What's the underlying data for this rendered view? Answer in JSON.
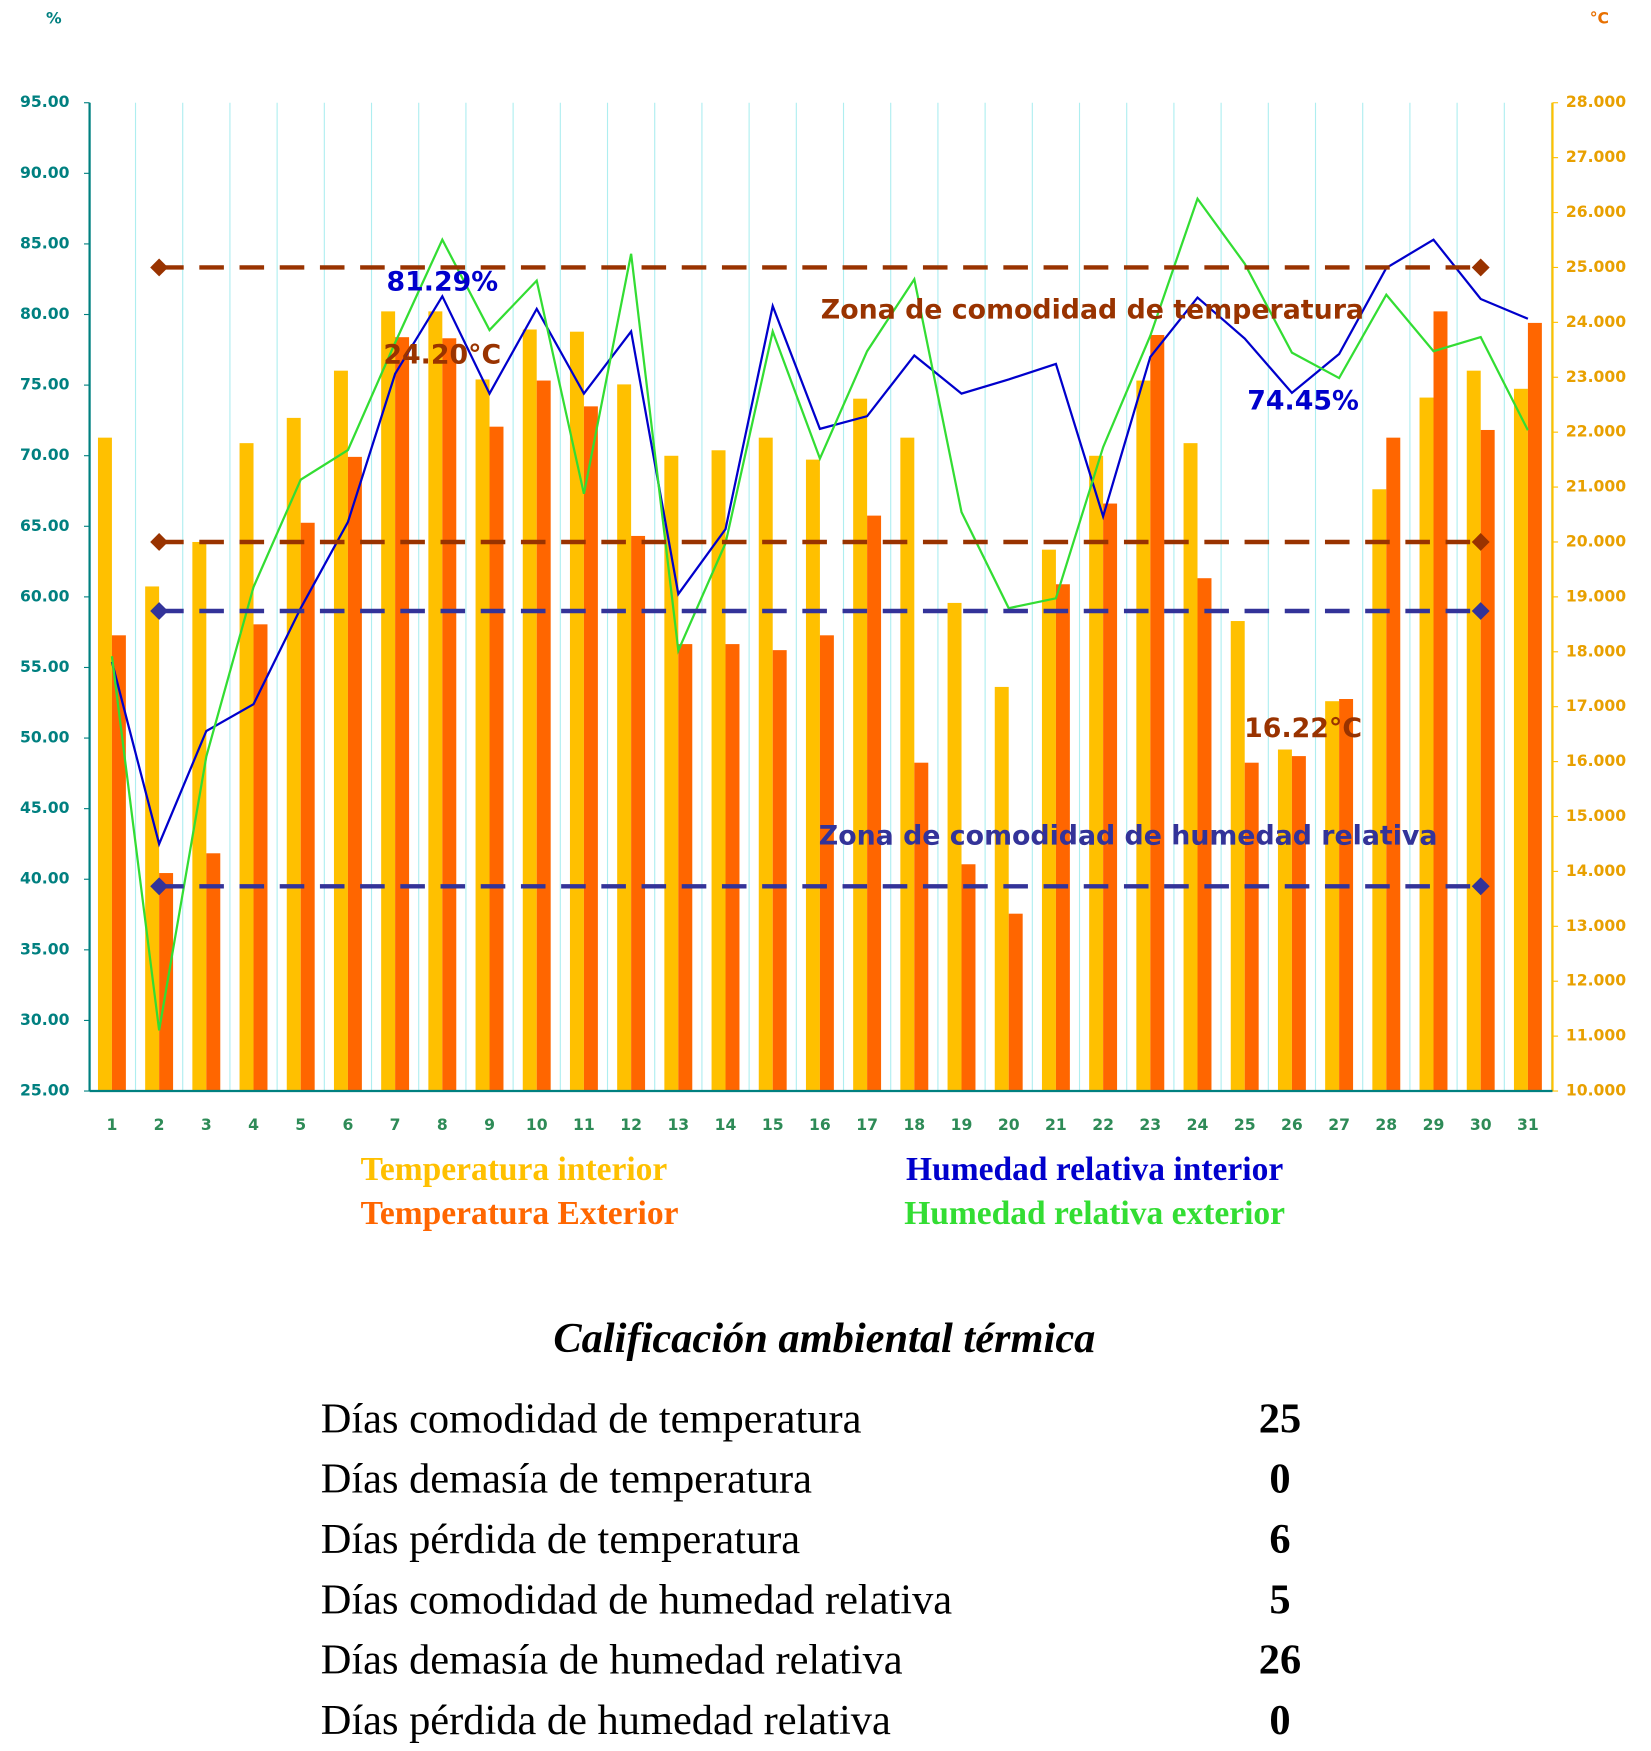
{
  "chart_data": {
    "type": "bar",
    "ylabel": "%",
    "y2label": "°C",
    "categories": [
      "1",
      "2",
      "3",
      "4",
      "5",
      "6",
      "7",
      "8",
      "9",
      "10",
      "11",
      "12",
      "13",
      "14",
      "15",
      "16",
      "17",
      "18",
      "19",
      "20",
      "21",
      "22",
      "23",
      "24",
      "25",
      "26",
      "27",
      "28",
      "29",
      "30",
      "31"
    ],
    "ylim": [
      25,
      95
    ],
    "yticks": [
      {
        "value": 25,
        "label": "25.00"
      },
      {
        "value": 30,
        "label": "30.00"
      },
      {
        "value": 35,
        "label": "35.00"
      },
      {
        "value": 40,
        "label": "40.00"
      },
      {
        "value": 45,
        "label": "45.00"
      },
      {
        "value": 50,
        "label": "50.00"
      },
      {
        "value": 55,
        "label": "55.00"
      },
      {
        "value": 60,
        "label": "60.00"
      },
      {
        "value": 65,
        "label": "65.00"
      },
      {
        "value": 70,
        "label": "70.00"
      },
      {
        "value": 75,
        "label": "75.00"
      },
      {
        "value": 80,
        "label": "80.00"
      },
      {
        "value": 85,
        "label": "85.00"
      },
      {
        "value": 90,
        "label": "90.00"
      },
      {
        "value": 95,
        "label": "95.00"
      }
    ],
    "y2lim": [
      10,
      28
    ],
    "y2ticks": [
      {
        "value": 10,
        "label": "10.000"
      },
      {
        "value": 11,
        "label": "11.000"
      },
      {
        "value": 12,
        "label": "12.000"
      },
      {
        "value": 13,
        "label": "13.000"
      },
      {
        "value": 14,
        "label": "14.000"
      },
      {
        "value": 15,
        "label": "15.000"
      },
      {
        "value": 16,
        "label": "16.000"
      },
      {
        "value": 17,
        "label": "17.000"
      },
      {
        "value": 18,
        "label": "18.000"
      },
      {
        "value": 19,
        "label": "19.000"
      },
      {
        "value": 20,
        "label": "20.000"
      },
      {
        "value": 21,
        "label": "21.000"
      },
      {
        "value": 22,
        "label": "22.000"
      },
      {
        "value": 23,
        "label": "23.000"
      },
      {
        "value": 24,
        "label": "24.000"
      },
      {
        "value": 25,
        "label": "25.000"
      },
      {
        "value": 26,
        "label": "26.000"
      },
      {
        "value": 27,
        "label": "27.000"
      },
      {
        "value": 28,
        "label": "28.000"
      }
    ],
    "grid": true,
    "series": [
      {
        "name": "Temperatura interior",
        "type": "bar",
        "axis": "y2",
        "color": "#ffc000",
        "values": [
          21.9,
          19.19,
          20.0,
          21.8,
          22.26,
          23.12,
          24.2,
          24.2,
          22.96,
          23.87,
          23.83,
          22.87,
          21.57,
          21.67,
          21.9,
          21.5,
          22.61,
          21.9,
          18.89,
          17.36,
          19.86,
          21.57,
          22.94,
          21.8,
          18.56,
          16.22,
          17.1,
          20.96,
          22.63,
          23.12,
          22.79
        ],
        "value_labels": [
          null,
          null,
          null,
          null,
          null,
          null,
          null,
          "24.20°C",
          null,
          null,
          null,
          null,
          null,
          null,
          null,
          null,
          null,
          null,
          null,
          null,
          null,
          null,
          null,
          null,
          null,
          "16.22°C",
          null,
          null,
          null,
          null,
          null
        ]
      },
      {
        "name": "Temperatura Exterior",
        "type": "bar",
        "axis": "y2",
        "color": "#ff6600",
        "values": [
          18.3,
          13.97,
          14.33,
          18.5,
          20.35,
          21.55,
          23.73,
          23.71,
          22.1,
          22.94,
          22.47,
          20.11,
          18.14,
          18.14,
          18.03,
          18.3,
          20.48,
          15.98,
          14.13,
          13.23,
          19.23,
          20.7,
          23.77,
          19.34,
          15.98,
          16.1,
          17.14,
          21.9,
          24.2,
          22.04,
          23.99
        ]
      },
      {
        "name": "Humedad relativa interior",
        "type": "line",
        "color": "#0000cc",
        "values": [
          55.4,
          42.5,
          50.5,
          52.4,
          59.2,
          65.3,
          75.8,
          81.29,
          74.4,
          80.4,
          74.4,
          78.8,
          60.2,
          64.8,
          80.6,
          71.9,
          72.8,
          77.1,
          74.4,
          75.4,
          76.5,
          65.7,
          77.0,
          81.2,
          78.3,
          74.45,
          77.2,
          83.3,
          85.3,
          81.1,
          79.7
        ],
        "value_labels": [
          null,
          null,
          null,
          null,
          null,
          null,
          null,
          "81.29%",
          null,
          null,
          null,
          null,
          null,
          null,
          null,
          null,
          null,
          null,
          null,
          null,
          null,
          null,
          null,
          null,
          null,
          "74.45%",
          null,
          null,
          null,
          null,
          null
        ]
      },
      {
        "name": "Humedad relativa exterior",
        "type": "line",
        "color": "#33dd33",
        "values": [
          55.8,
          29.3,
          48.7,
          60.7,
          68.3,
          70.4,
          78.0,
          85.3,
          78.9,
          82.4,
          67.3,
          84.3,
          56.2,
          63.8,
          78.8,
          69.8,
          77.4,
          82.5,
          66.0,
          59.2,
          59.9,
          70.6,
          78.5,
          88.2,
          83.6,
          77.3,
          75.5,
          81.4,
          77.4,
          78.4,
          71.8
        ]
      }
    ],
    "reference_lines": [
      {
        "name": "Zona de comodidad de temperatura",
        "color": "#993300",
        "axis": "y2",
        "values": [
          25,
          20
        ]
      },
      {
        "name": "Zona de comodidad de humedad relativa",
        "color": "#333399",
        "values": [
          59,
          39.5
        ]
      }
    ]
  },
  "table": {
    "title": "Calificación ambiental térmica",
    "rows": [
      [
        "Días comodidad de temperatura",
        25
      ],
      [
        "Días demasía de temperatura",
        0
      ],
      [
        "Días pérdida de temperatura",
        6
      ],
      [
        "Días comodidad de humedad relativa",
        5
      ],
      [
        "Días demasía de humedad relativa",
        26
      ],
      [
        "Días pérdida de humedad relativa",
        0
      ]
    ]
  }
}
